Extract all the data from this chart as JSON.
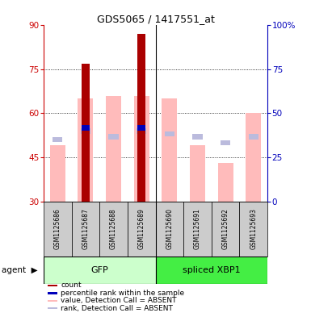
{
  "title": "GDS5065 / 1417551_at",
  "samples": [
    "GSM1125686",
    "GSM1125687",
    "GSM1125688",
    "GSM1125689",
    "GSM1125690",
    "GSM1125691",
    "GSM1125692",
    "GSM1125693"
  ],
  "ylim_left": [
    30,
    90
  ],
  "ylim_right": [
    0,
    100
  ],
  "yticks_left": [
    30,
    45,
    60,
    75,
    90
  ],
  "yticks_right": [
    0,
    25,
    50,
    75,
    100
  ],
  "count_values": [
    null,
    77,
    null,
    87,
    null,
    null,
    null,
    null
  ],
  "percentile_values": [
    null,
    55,
    null,
    55,
    null,
    null,
    null,
    null
  ],
  "absent_value_values": [
    49,
    65,
    66,
    66,
    65,
    49,
    43,
    60
  ],
  "absent_rank_values": [
    51,
    54,
    52,
    54,
    53,
    52,
    50,
    52
  ],
  "color_count": "#aa0000",
  "color_percentile": "#0000bb",
  "color_absent_value": "#ffbbbb",
  "color_absent_rank": "#bbbbdd",
  "left_ytick_color": "#cc0000",
  "right_ytick_color": "#0000bb",
  "group_gfp_color": "#ccffcc",
  "group_xbp1_color": "#44ee44",
  "sample_box_color": "#cccccc"
}
